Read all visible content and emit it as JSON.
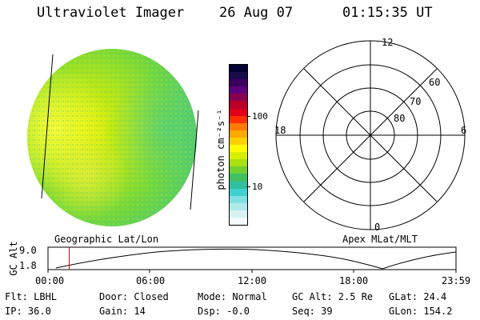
{
  "header": {
    "title": "Ultraviolet Imager",
    "date": "26 Aug 07",
    "time": "01:15:35 UT"
  },
  "colorbar": {
    "label": "photon cm⁻²s⁻¹",
    "ticks": [
      "100",
      "10"
    ],
    "colors": [
      "#000033",
      "#1a0a4a",
      "#3a0060",
      "#60007a",
      "#8a0050",
      "#b8002a",
      "#e0001a",
      "#ff3000",
      "#ff7a00",
      "#ffa800",
      "#ffd000",
      "#ffff00",
      "#d8f000",
      "#a8e010",
      "#70d030",
      "#40c060",
      "#30c0a0",
      "#40d0d0",
      "#80e0e0",
      "#b0eaea",
      "#d8f2f2",
      "#f2fafa"
    ]
  },
  "polar": {
    "labels": {
      "top": "12",
      "bottom": "0",
      "left": "18",
      "right": "6",
      "r60": "60",
      "r70": "70",
      "r80": "80"
    }
  },
  "timeline": {
    "left_caption": "Geographic Lat/Lon",
    "right_caption": "Apex MLat/MLT",
    "ylabel": "GC Alt",
    "y_ticks": [
      "9.0",
      "1.8"
    ],
    "x_ticks": [
      "00:00",
      "06:00",
      "12:00",
      "18:00",
      "23:59"
    ],
    "current_time_fraction": 0.052
  },
  "status": {
    "flt": "Flt: LBHL",
    "ip": "IP: 36.0",
    "door": "Door: Closed",
    "gain": "Gain: 14",
    "mode": "Mode: Normal",
    "dsp": "Dsp:   -0.0",
    "gc_alt": "GC Alt: 2.5 Re",
    "seq": "Seq: 39",
    "glat": "GLat:  24.4",
    "glon": "GLon: 154.2"
  }
}
